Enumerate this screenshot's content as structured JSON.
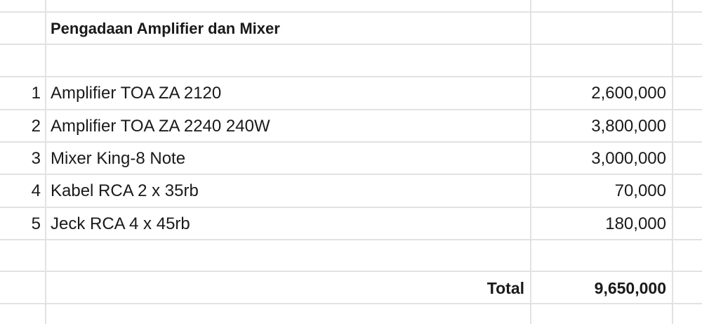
{
  "sheet": {
    "title": "Pengadaan Amplifier dan Mixer",
    "items": [
      {
        "no": "1",
        "name": "Amplifier TOA ZA 2120",
        "price": "2,600,000"
      },
      {
        "no": "2",
        "name": "Amplifier TOA ZA 2240 240W",
        "price": "3,800,000"
      },
      {
        "no": "3",
        "name": "Mixer King-8 Note",
        "price": "3,000,000"
      },
      {
        "no": "4",
        "name": "Kabel RCA 2 x 35rb",
        "price": "70,000"
      },
      {
        "no": "5",
        "name": "Jeck RCA 4 x 45rb",
        "price": "180,000"
      }
    ],
    "total_label": "Total",
    "total_value": "9,650,000"
  },
  "colors": {
    "gridline": "#e2e2e2",
    "text": "#1a1a1a"
  }
}
